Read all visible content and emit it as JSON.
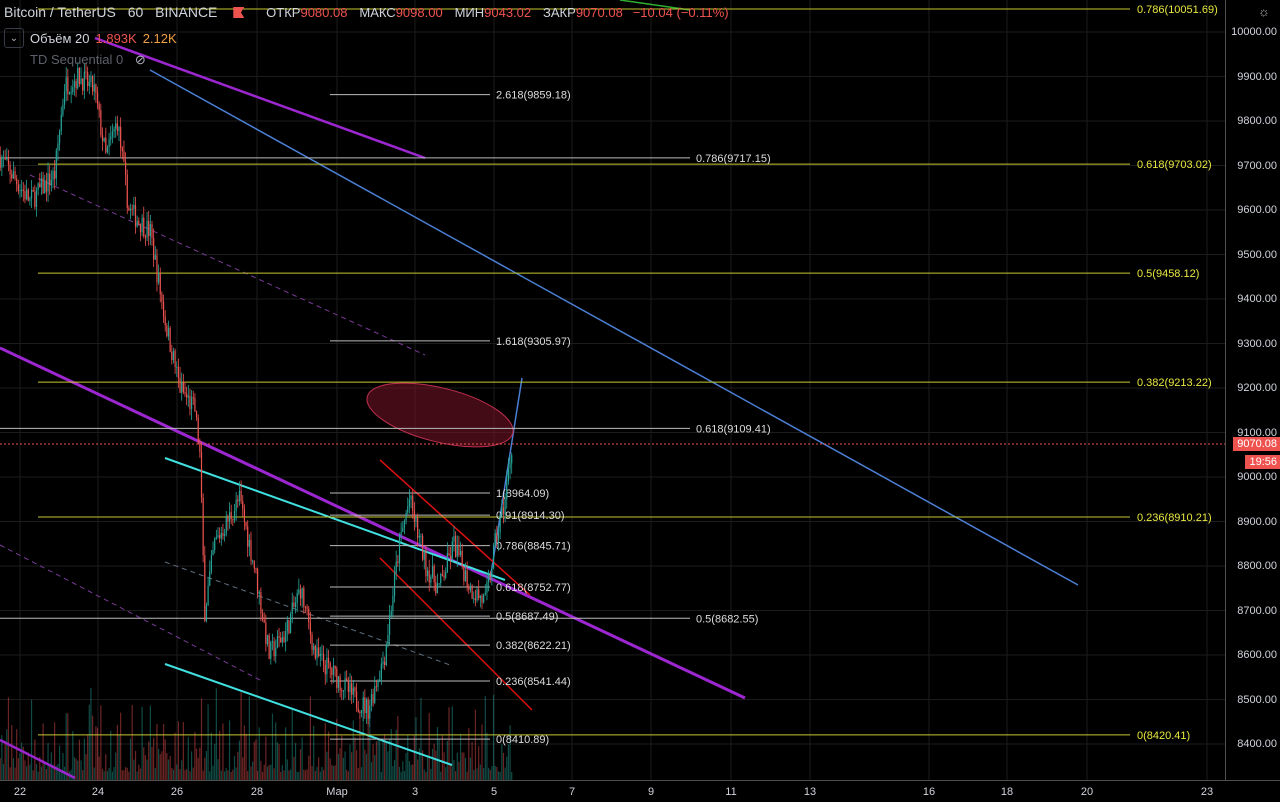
{
  "header": {
    "symbol": "Bitcoin / TetherUS",
    "interval": "60",
    "exchange": "BINANCE",
    "open_label": "ОТКР",
    "open": "9080.08",
    "high_label": "МАКС",
    "high": "9098.00",
    "low_label": "МИН",
    "low": "9043.02",
    "close_label": "ЗАКР",
    "close": "9070.08",
    "change": "−10.04 (−0.11%)"
  },
  "indicators": {
    "volume_label": "Объём 20",
    "volume_value": "1.893K",
    "volume_ma": "2.12K",
    "td_label": "TD Sequential 0"
  },
  "price_axis": {
    "labels": [
      "10000.00",
      "9900.00",
      "9800.00",
      "9700.00",
      "9600.00",
      "9500.00",
      "9400.00",
      "9300.00",
      "9200.00",
      "9100.00",
      "9000.00",
      "8900.00",
      "8800.00",
      "8700.00",
      "8600.00",
      "8500.00",
      "8400.00"
    ],
    "current_price": "9070.08",
    "countdown": "19:56"
  },
  "time_axis": {
    "labels": [
      "22",
      "24",
      "26",
      "28",
      "Мар",
      "3",
      "5",
      "7",
      "9",
      "11",
      "13",
      "16",
      "18",
      "20",
      "23"
    ]
  },
  "fib_left": [
    "2.618(9859.18)",
    "1.618(9305.97)",
    "1(8964.09)",
    "0.91(8914.30)",
    "0.786(8845.71)",
    "0.618(8752.77)",
    "0.5(8687.49)",
    "0.382(8622.21)",
    "0.236(8541.44)",
    "0(8410.89)"
  ],
  "fib_mid": [
    "0.786(9717.15)",
    "0.618(9109.41)",
    "0.5(8682.55)"
  ],
  "fib_right": [
    "0.786(10051.69)",
    "0.618(9703.02)",
    "0.5(9458.12)",
    "0.382(9213.22)",
    "0.236(8910.21)",
    "0(8420.41)"
  ],
  "colors": {
    "up": "#26a69a",
    "down": "#ef5350",
    "fib_yellow": "#d4d43a",
    "fib_white": "#cfcfcf",
    "channel_purple": "#9c27d0",
    "trend_blue": "#4a7fd4",
    "cyan": "#40e0e0",
    "red": "#e01010"
  },
  "price_path": [
    [
      "02-21 12:00",
      9720
    ],
    [
      "02-22 06:00",
      9620
    ],
    [
      "02-22 21:00",
      9680
    ],
    [
      "02-23 03:00",
      9880
    ],
    [
      "02-23 12:00",
      9900
    ],
    [
      "02-23 21:00",
      9870
    ],
    [
      "02-24 04:00",
      9720
    ],
    [
      "02-24 11:00",
      9800
    ],
    [
      "02-24 18:00",
      9600
    ],
    [
      "02-25 07:00",
      9550
    ],
    [
      "02-25 16:00",
      9350
    ],
    [
      "02-26 01:00",
      9200
    ],
    [
      "02-26 10:00",
      9150
    ],
    [
      "02-26 13:00",
      9050
    ],
    [
      "02-26 16:00",
      8700
    ],
    [
      "02-26 22:00",
      8850
    ],
    [
      "02-27 13:00",
      8950
    ],
    [
      "02-27 22:00",
      8800
    ],
    [
      "02-28 07:00",
      8600
    ],
    [
      "02-28 17:00",
      8650
    ],
    [
      "02-29 02:00",
      8750
    ],
    [
      "02-29 11:00",
      8600
    ],
    [
      "03-01 00:00",
      8550
    ],
    [
      "03-01 11:00",
      8500
    ],
    [
      "03-01 19:00",
      8480
    ],
    [
      "03-02 05:00",
      8600
    ],
    [
      "03-02 14:00",
      8850
    ],
    [
      "03-02 20:00",
      8950
    ],
    [
      "03-03 06:00",
      8800
    ],
    [
      "03-03 14:00",
      8750
    ],
    [
      "03-03 23:00",
      8850
    ],
    [
      "03-04 09:00",
      8750
    ],
    [
      "03-04 18:00",
      8720
    ],
    [
      "03-05 00:00",
      8850
    ],
    [
      "03-05 06:00",
      8950
    ],
    [
      "03-05 10:00",
      9070
    ]
  ]
}
